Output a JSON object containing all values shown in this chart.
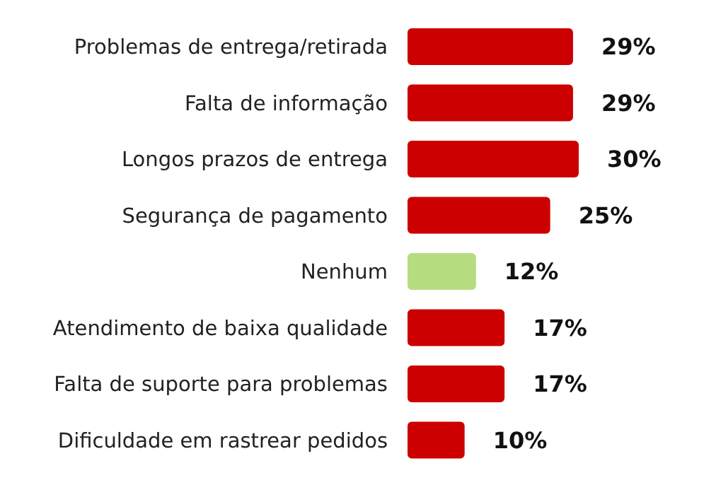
{
  "chart_data": {
    "type": "bar",
    "orientation": "horizontal",
    "categories": [
      "Problemas de entrega/retirada",
      "Falta de informação",
      "Longos prazos de entrega",
      "Segurança de pagamento",
      "Nenhum",
      "Atendimento de baixa qualidade",
      "Falta de suporte para problemas",
      "Dificuldade em rastrear pedidos"
    ],
    "values": [
      29,
      29,
      30,
      25,
      12,
      17,
      17,
      10
    ],
    "colors": [
      "#cc0000",
      "#cc0000",
      "#cc0000",
      "#cc0000",
      "#b5dd7f",
      "#cc0000",
      "#cc0000",
      "#cc0000"
    ],
    "value_labels": [
      "29%",
      "29%",
      "30%",
      "25%",
      "12%",
      "17%",
      "17%",
      "10%"
    ]
  }
}
